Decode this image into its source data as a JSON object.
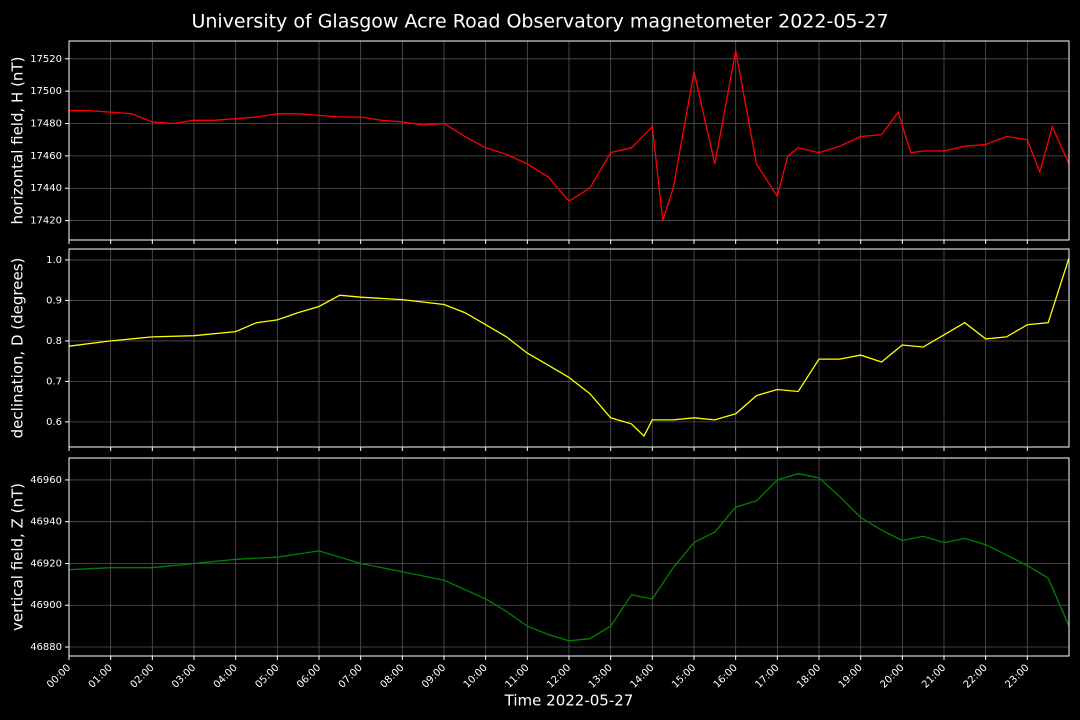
{
  "title": "University of Glasgow Acre Road Observatory magnetometer 2022-05-27",
  "chart_data": [
    {
      "type": "line",
      "ylabel": "horizontal field, H (nT)",
      "color": "#ff0000",
      "grid": true,
      "xlim": [
        0,
        24
      ],
      "ylim": [
        17408,
        17531
      ],
      "yticks": [
        17420,
        17440,
        17460,
        17480,
        17500,
        17520
      ],
      "x": [
        0,
        0.5,
        1,
        1.5,
        2,
        2.5,
        3,
        3.5,
        4,
        4.5,
        5,
        5.5,
        6,
        6.5,
        7,
        7.5,
        8,
        8.5,
        9,
        9.5,
        10,
        10.5,
        11,
        11.5,
        12,
        12.5,
        13,
        13.5,
        14,
        14.25,
        14.5,
        15,
        15.5,
        16,
        16.5,
        17,
        17.25,
        17.5,
        18,
        18.5,
        19,
        19.5,
        19.9,
        20.2,
        20.5,
        21,
        21.5,
        22,
        22.5,
        23,
        23.3,
        23.6,
        24
      ],
      "values": [
        17488,
        17488,
        17487,
        17486,
        17481,
        17480,
        17482,
        17482,
        17483,
        17484,
        17486,
        17486,
        17485,
        17484,
        17484,
        17482,
        17481,
        17479,
        17480,
        17472,
        17465,
        17461,
        17455,
        17447,
        17432,
        17440,
        17462,
        17465,
        17478,
        17420,
        17440,
        17512,
        17455,
        17525,
        17455,
        17435,
        17460,
        17465,
        17462,
        17466,
        17472,
        17473,
        17487,
        17462,
        17463,
        17463,
        17466,
        17467,
        17472,
        17470,
        17450,
        17478,
        17455
      ]
    },
    {
      "type": "line",
      "ylabel": "declination, D (degrees)",
      "color": "#ffff00",
      "grid": true,
      "xlim": [
        0,
        24
      ],
      "ylim": [
        0.538,
        1.027
      ],
      "yticks": [
        0.6,
        0.7,
        0.8,
        0.9,
        {
          "value": 1.0,
          "label": "1.0"
        }
      ],
      "x": [
        0,
        1,
        2,
        3,
        4,
        4.5,
        5,
        5.5,
        6,
        6.5,
        7,
        8,
        9,
        9.5,
        10,
        10.5,
        11,
        11.5,
        12,
        12.5,
        13,
        13.5,
        13.8,
        14,
        14.5,
        15,
        15.5,
        16,
        16.5,
        17,
        17.5,
        18,
        18.5,
        19,
        19.5,
        20,
        20.5,
        21,
        21.5,
        22,
        22.5,
        23,
        23.5,
        24
      ],
      "values": [
        0.787,
        0.8,
        0.81,
        0.813,
        0.823,
        0.845,
        0.852,
        0.87,
        0.885,
        0.913,
        0.908,
        0.902,
        0.89,
        0.87,
        0.84,
        0.81,
        0.77,
        0.74,
        0.71,
        0.67,
        0.61,
        0.595,
        0.565,
        0.605,
        0.605,
        0.61,
        0.605,
        0.62,
        0.665,
        0.68,
        0.675,
        0.755,
        0.755,
        0.765,
        0.748,
        0.79,
        0.785,
        0.815,
        0.845,
        0.805,
        0.81,
        0.84,
        0.845,
        1.005
      ]
    },
    {
      "type": "line",
      "ylabel": "vertical field, Z (nT)",
      "xlabel": "Time 2022-05-27",
      "color": "#008000",
      "grid": true,
      "xlim": [
        0,
        24
      ],
      "ylim": [
        46875.7,
        46970.5
      ],
      "yticks": [
        46880,
        46900,
        46920,
        46940,
        46960
      ],
      "xticks": [
        {
          "value": 0,
          "label": "00:00"
        },
        {
          "value": 1,
          "label": "01:00"
        },
        {
          "value": 2,
          "label": "02:00"
        },
        {
          "value": 3,
          "label": "03:00"
        },
        {
          "value": 4,
          "label": "04:00"
        },
        {
          "value": 5,
          "label": "05:00"
        },
        {
          "value": 6,
          "label": "06:00"
        },
        {
          "value": 7,
          "label": "07:00"
        },
        {
          "value": 8,
          "label": "08:00"
        },
        {
          "value": 9,
          "label": "09:00"
        },
        {
          "value": 10,
          "label": "10:00"
        },
        {
          "value": 11,
          "label": "11:00"
        },
        {
          "value": 12,
          "label": "12:00"
        },
        {
          "value": 13,
          "label": "13:00"
        },
        {
          "value": 14,
          "label": "14:00"
        },
        {
          "value": 15,
          "label": "15:00"
        },
        {
          "value": 16,
          "label": "16:00"
        },
        {
          "value": 17,
          "label": "17:00"
        },
        {
          "value": 18,
          "label": "18:00"
        },
        {
          "value": 19,
          "label": "19:00"
        },
        {
          "value": 20,
          "label": "20:00"
        },
        {
          "value": 21,
          "label": "21:00"
        },
        {
          "value": 22,
          "label": "22:00"
        },
        {
          "value": 23,
          "label": "23:00"
        }
      ],
      "x": [
        0,
        1,
        2,
        3,
        4,
        5,
        6,
        7,
        8,
        9,
        10,
        10.5,
        11,
        11.5,
        12,
        12.5,
        13,
        13.5,
        14,
        14.5,
        15,
        15.5,
        16,
        16.5,
        17,
        17.5,
        18,
        18.5,
        19,
        19.5,
        20,
        20.5,
        21,
        21.5,
        22,
        22.5,
        23,
        23.5,
        24
      ],
      "values": [
        46917,
        46918,
        46918,
        46920,
        46922,
        46923,
        46926,
        46920,
        46916,
        46912,
        46903,
        46897,
        46890,
        46886,
        46883,
        46884,
        46890,
        46905,
        46903,
        46918,
        46930,
        46935,
        46947,
        46950,
        46960,
        46963,
        46961,
        46952,
        46942,
        46936,
        46931,
        46933,
        46930,
        46932,
        46929,
        46924,
        46919,
        46913,
        46890
      ]
    }
  ]
}
